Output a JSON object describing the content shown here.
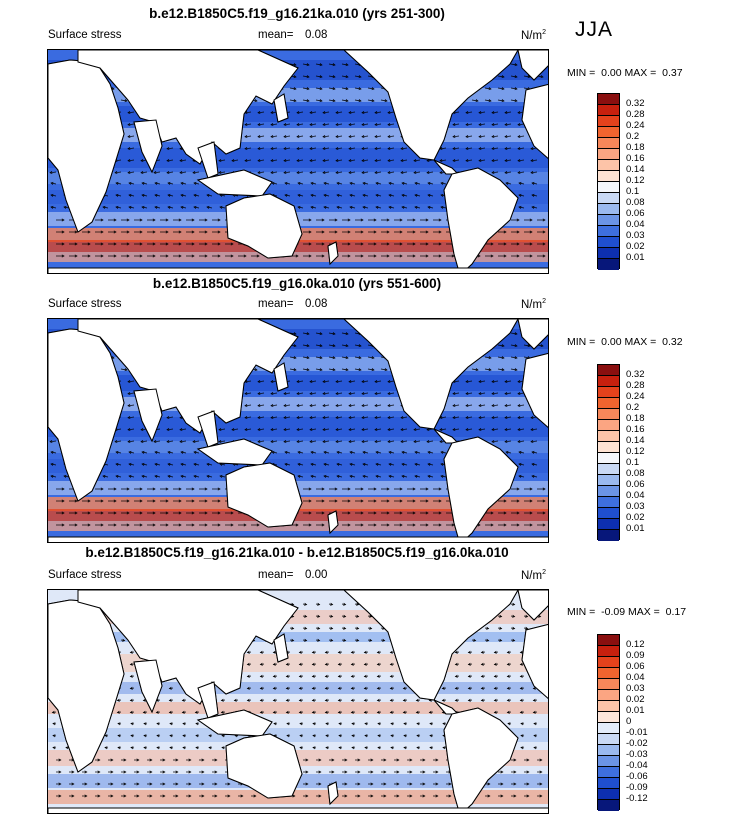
{
  "season": "JJA",
  "panels": [
    {
      "title": "b.e12.B1850C5.f19_g16.21ka.010 (yrs 251-300)",
      "variable": "Surface stress",
      "mean_label": "mean=",
      "mean_value": "0.08",
      "units": "N/m",
      "units_sup": "2",
      "min_label": "MIN =",
      "min_value": "0.00",
      "max_label": "MAX =",
      "max_value": "0.37",
      "colorbar": {
        "levels": [
          "0.32",
          "0.28",
          "0.24",
          "0.2",
          "0.18",
          "0.16",
          "0.14",
          "0.12",
          "0.1",
          "0.08",
          "0.06",
          "0.04",
          "0.03",
          "0.02",
          "0.01"
        ],
        "colors": [
          "#8a0f0f",
          "#c7200e",
          "#e4421c",
          "#f1642f",
          "#f7875a",
          "#fba582",
          "#fdc4a8",
          "#fee3d3",
          "#f5f7fb",
          "#c9d9f5",
          "#9ab9ef",
          "#6b94e6",
          "#3e6fde",
          "#1f4fd0",
          "#0d2fb0",
          "#07177a"
        ]
      }
    },
    {
      "title": "b.e12.B1850C5.f19_g16.0ka.010 (yrs 551-600)",
      "variable": "Surface stress",
      "mean_label": "mean=",
      "mean_value": "0.08",
      "units": "N/m",
      "units_sup": "2",
      "min_label": "MIN =",
      "min_value": "0.00",
      "max_label": "MAX =",
      "max_value": "0.32",
      "colorbar": {
        "levels": [
          "0.32",
          "0.28",
          "0.24",
          "0.2",
          "0.18",
          "0.16",
          "0.14",
          "0.12",
          "0.1",
          "0.08",
          "0.06",
          "0.04",
          "0.03",
          "0.02",
          "0.01"
        ],
        "colors": [
          "#8a0f0f",
          "#c7200e",
          "#e4421c",
          "#f1642f",
          "#f7875a",
          "#fba582",
          "#fdc4a8",
          "#fee3d3",
          "#f5f7fb",
          "#c9d9f5",
          "#9ab9ef",
          "#6b94e6",
          "#3e6fde",
          "#1f4fd0",
          "#0d2fb0",
          "#07177a"
        ]
      }
    },
    {
      "title": "b.e12.B1850C5.f19_g16.21ka.010 - b.e12.B1850C5.f19_g16.0ka.010",
      "variable": "Surface stress",
      "mean_label": "mean=",
      "mean_value": "0.00",
      "units": "N/m",
      "units_sup": "2",
      "min_label": "MIN =",
      "min_value": "-0.09",
      "max_label": "MAX =",
      "max_value": "0.17",
      "colorbar": {
        "levels": [
          "0.12",
          "0.09",
          "0.06",
          "0.04",
          "0.03",
          "0.02",
          "0.01",
          "0",
          "-0.01",
          "-0.02",
          "-0.03",
          "-0.04",
          "-0.06",
          "-0.09",
          "-0.12"
        ],
        "colors": [
          "#8a0f0f",
          "#c7200e",
          "#e4421c",
          "#f1642f",
          "#f7875a",
          "#fba582",
          "#fdc4a8",
          "#fde6da",
          "#e3ecfa",
          "#c9d9f5",
          "#9ab9ef",
          "#6b94e6",
          "#3e6fde",
          "#1f4fd0",
          "#0d2fb0",
          "#07177a"
        ]
      }
    }
  ]
}
